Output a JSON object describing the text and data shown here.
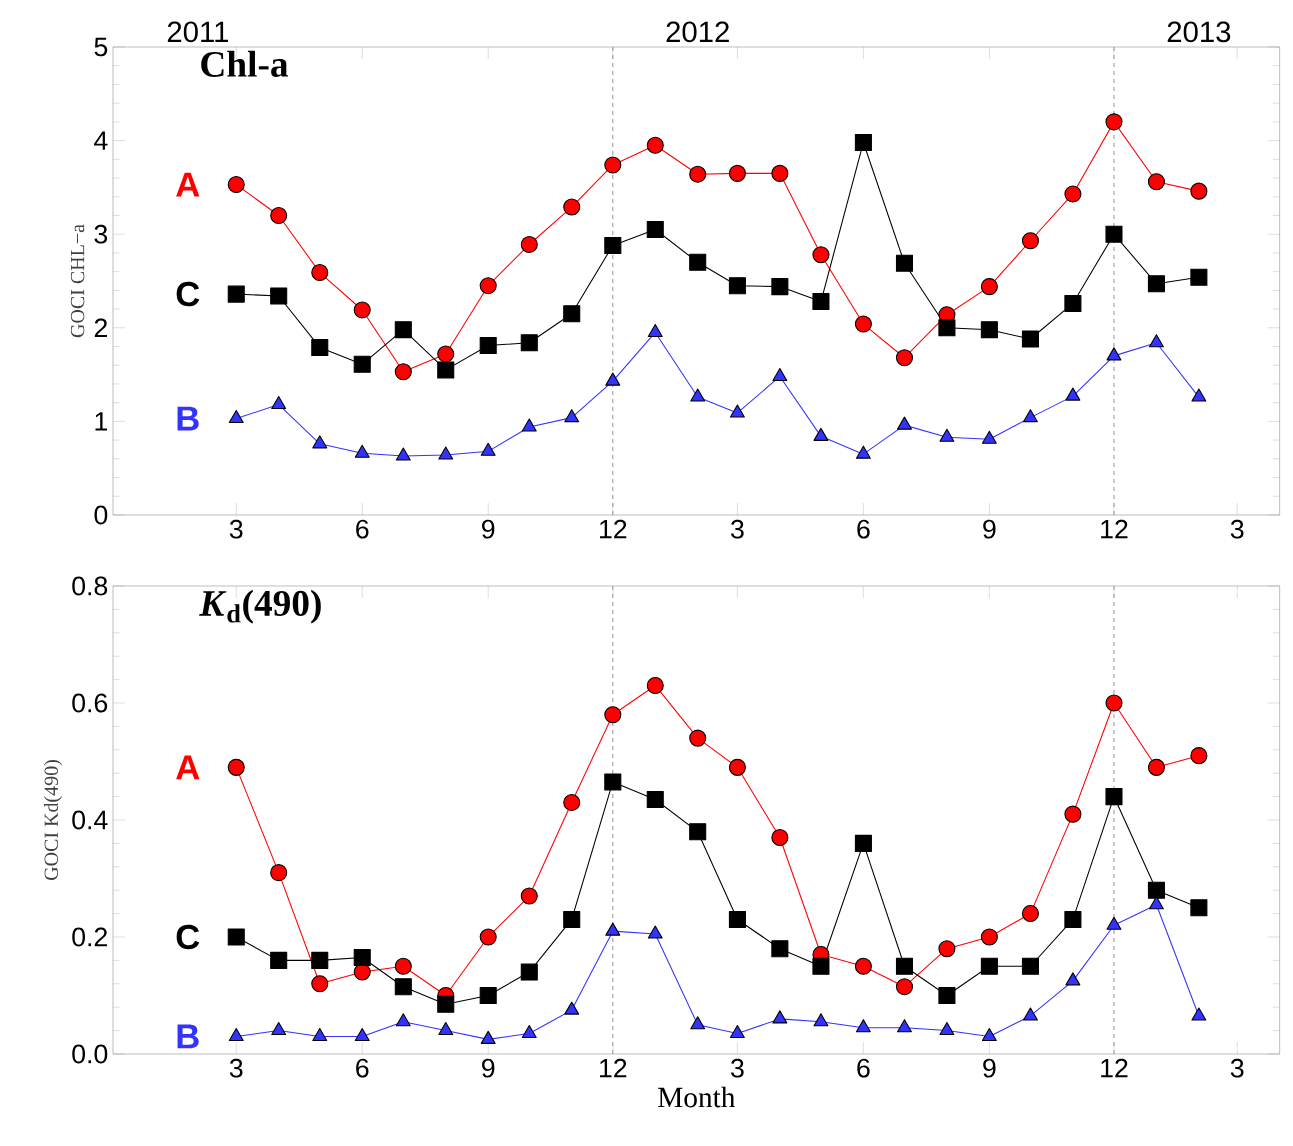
{
  "chart_data": [
    {
      "type": "line",
      "title": "Chl-a",
      "ylabel": "GOCI CHL−a",
      "x": [
        "2011-03",
        "2011-04",
        "2011-05",
        "2011-06",
        "2011-07",
        "2011-08",
        "2011-09",
        "2011-10",
        "2011-11",
        "2011-12",
        "2012-01",
        "2012-02",
        "2012-03",
        "2012-04",
        "2012-05",
        "2012-06",
        "2012-07",
        "2012-08",
        "2012-09",
        "2012-10",
        "2012-11",
        "2012-12",
        "2013-01",
        "2013-02"
      ],
      "xlim": [
        "2010-12",
        "2013-04"
      ],
      "xticks": [
        {
          "value": "2011-03",
          "label": "3"
        },
        {
          "value": "2011-06",
          "label": "6"
        },
        {
          "value": "2011-09",
          "label": "9"
        },
        {
          "value": "2011-12",
          "label": "12"
        },
        {
          "value": "2012-03",
          "label": "3"
        },
        {
          "value": "2012-06",
          "label": "6"
        },
        {
          "value": "2012-09",
          "label": "9"
        },
        {
          "value": "2012-12",
          "label": "12"
        },
        {
          "value": "2013-03",
          "label": "3"
        }
      ],
      "x2lim": [
        "2010-12",
        "2013-04"
      ],
      "x2ticks": [
        {
          "value": "2011-02",
          "label": "2011"
        },
        {
          "value": "2012-02",
          "label": "2012"
        },
        {
          "value": "2013-02",
          "label": "2013"
        }
      ],
      "ylim": [
        0,
        5
      ],
      "yticks": [
        0,
        1,
        2,
        3,
        4,
        5
      ],
      "line_style": "solid",
      "ref_lines": [
        {
          "axis": "x",
          "value": "2011-12",
          "color": "#999999",
          "line_style": "dashed"
        },
        {
          "axis": "x",
          "value": "2012-12",
          "color": "#999999",
          "line_style": "dashed"
        }
      ],
      "series": [
        {
          "name": "A",
          "color": "#ff0000",
          "marker": "circle",
          "values": [
            3.53,
            3.2,
            2.59,
            2.19,
            1.53,
            1.72,
            2.45,
            2.89,
            3.29,
            3.74,
            3.95,
            3.64,
            3.65,
            3.65,
            2.78,
            2.04,
            1.68,
            2.14,
            2.44,
            2.93,
            3.43,
            4.2,
            3.56,
            3.46
          ]
        },
        {
          "name": "C",
          "color": "#000000",
          "marker": "square",
          "values": [
            2.36,
            2.34,
            1.79,
            1.61,
            1.98,
            1.55,
            1.81,
            1.84,
            2.15,
            2.88,
            3.05,
            2.7,
            2.45,
            2.44,
            2.28,
            3.98,
            2.69,
            2.0,
            1.98,
            1.88,
            2.26,
            3.0,
            2.47,
            2.54
          ]
        },
        {
          "name": "B",
          "color": "#3333ff",
          "marker": "triangle",
          "values": [
            1.03,
            1.18,
            0.76,
            0.66,
            0.63,
            0.64,
            0.68,
            0.94,
            1.04,
            1.43,
            1.95,
            1.26,
            1.09,
            1.48,
            0.84,
            0.65,
            0.96,
            0.83,
            0.81,
            1.04,
            1.27,
            1.7,
            1.84,
            1.26
          ]
        }
      ]
    },
    {
      "type": "line",
      "title": "*K*$_{d}$(490)",
      "ylabel": "GOCI Kd(490)",
      "xlabel": "Month",
      "x": [
        "2011-03",
        "2011-04",
        "2011-05",
        "2011-06",
        "2011-07",
        "2011-08",
        "2011-09",
        "2011-10",
        "2011-11",
        "2011-12",
        "2012-01",
        "2012-02",
        "2012-03",
        "2012-04",
        "2012-05",
        "2012-06",
        "2012-07",
        "2012-08",
        "2012-09",
        "2012-10",
        "2012-11",
        "2012-12",
        "2013-01",
        "2013-02"
      ],
      "xlim": [
        "2010-12",
        "2013-04"
      ],
      "xticks": [
        {
          "value": "2011-03",
          "label": "3"
        },
        {
          "value": "2011-06",
          "label": "6"
        },
        {
          "value": "2011-09",
          "label": "9"
        },
        {
          "value": "2011-12",
          "label": "12"
        },
        {
          "value": "2012-03",
          "label": "3"
        },
        {
          "value": "2012-06",
          "label": "6"
        },
        {
          "value": "2012-09",
          "label": "9"
        },
        {
          "value": "2012-12",
          "label": "12"
        },
        {
          "value": "2013-03",
          "label": "3"
        }
      ],
      "ylim": [
        0,
        0.8
      ],
      "yticks": [
        {
          "value": 0,
          "label": "0.0"
        },
        0.2,
        0.4,
        0.6,
        0.8
      ],
      "line_style": "solid",
      "ref_lines": [
        {
          "axis": "x",
          "value": "2011-12",
          "color": "#999999",
          "line_style": "dashed"
        },
        {
          "axis": "x",
          "value": "2012-12",
          "color": "#999999",
          "line_style": "dashed"
        }
      ],
      "series": [
        {
          "name": "A",
          "color": "#ff0000",
          "marker": "circle",
          "values": [
            0.49,
            0.31,
            0.12,
            0.14,
            0.15,
            0.1,
            0.2,
            0.27,
            0.43,
            0.58,
            0.63,
            0.54,
            0.49,
            0.37,
            0.17,
            0.15,
            0.115,
            0.18,
            0.2,
            0.24,
            0.41,
            0.6,
            0.49,
            0.51
          ]
        },
        {
          "name": "C",
          "color": "#000000",
          "marker": "square",
          "values": [
            0.2,
            0.16,
            0.16,
            0.165,
            0.115,
            0.085,
            0.1,
            0.14,
            0.23,
            0.465,
            0.435,
            0.38,
            0.23,
            0.18,
            0.15,
            0.36,
            0.15,
            0.1,
            0.15,
            0.15,
            0.23,
            0.44,
            0.28,
            0.25
          ]
        },
        {
          "name": "B",
          "color": "#3333ff",
          "marker": "triangle",
          "values": [
            0.03,
            0.04,
            0.03,
            0.03,
            0.055,
            0.04,
            0.025,
            0.035,
            0.075,
            0.21,
            0.205,
            0.05,
            0.035,
            0.06,
            0.055,
            0.045,
            0.045,
            0.04,
            0.03,
            0.065,
            0.125,
            0.22,
            0.255,
            0.065
          ]
        }
      ]
    }
  ]
}
